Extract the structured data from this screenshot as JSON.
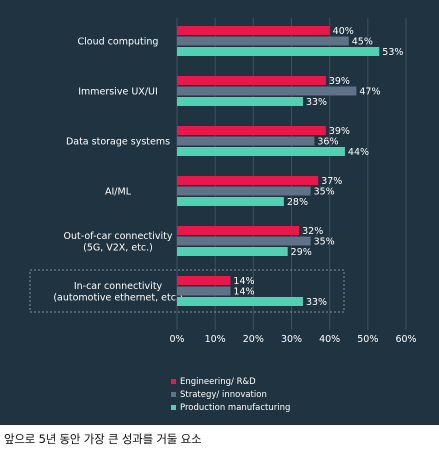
{
  "chart_data": {
    "type": "bar",
    "orientation": "horizontal",
    "categories": [
      [
        "Cloud computing"
      ],
      [
        "Immersive UX/UI"
      ],
      [
        "Data storage systems"
      ],
      [
        "AI/ML"
      ],
      [
        "Out-of-car connectivity",
        "(5G, V2X, etc.)"
      ],
      [
        "In-car connectivity",
        "(automotive ethernet, etc.)"
      ]
    ],
    "series": [
      {
        "name": "Engineering/ R&D",
        "values": [
          40,
          39,
          39,
          37,
          32,
          14
        ],
        "color": "#e8194a"
      },
      {
        "name": "Strategy/ innovation",
        "values": [
          45,
          47,
          36,
          35,
          35,
          14
        ],
        "color": "#5f7288"
      },
      {
        "name": "Production manufacturing",
        "values": [
          53,
          33,
          44,
          28,
          29,
          33
        ],
        "color": "#4fd1b2"
      }
    ],
    "value_suffix": "%",
    "xlim": [
      0,
      60
    ],
    "xticks": [
      "0%",
      "10%",
      "20%",
      "30%",
      "40%",
      "50%",
      "60%"
    ],
    "grid": true,
    "legend_position": "bottom-center",
    "highlighted_category": 5,
    "background": "#1f3340",
    "text_color": "#ffffff"
  },
  "caption": "앞으로 5년 동안 가장 큰 성과를 거둘 요소"
}
